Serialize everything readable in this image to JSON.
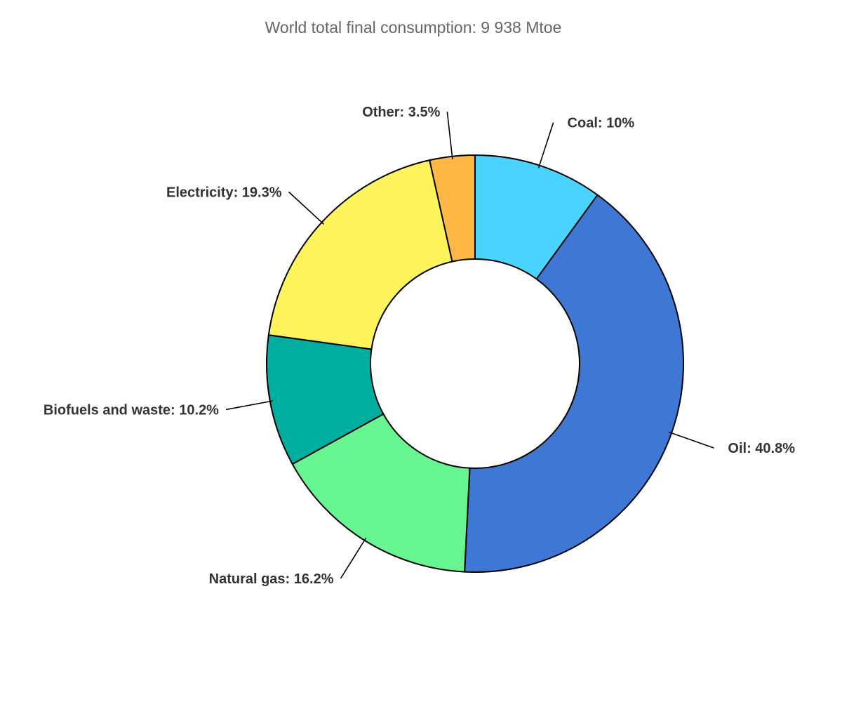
{
  "chart_data": {
    "type": "pie",
    "title": "World total final consumption: 9 938 Mtoe",
    "slices": [
      {
        "name": "Coal",
        "value": 10.0,
        "label": "Coal: 10%",
        "color": "#4BD3FF"
      },
      {
        "name": "Oil",
        "value": 40.8,
        "label": "Oil: 40.8%",
        "color": "#3F78D4"
      },
      {
        "name": "Natural gas",
        "value": 16.2,
        "label": "Natural gas: 16.2%",
        "color": "#67F592"
      },
      {
        "name": "Biofuels and waste",
        "value": 10.2,
        "label": "Biofuels and waste: 10.2%",
        "color": "#00AE9F"
      },
      {
        "name": "Electricity",
        "value": 19.3,
        "label": "Electricity: 19.3%",
        "color": "#FFF35C"
      },
      {
        "name": "Other",
        "value": 3.5,
        "label": "Other: 3.5%",
        "color": "#FFB845"
      }
    ],
    "legend": "none"
  }
}
